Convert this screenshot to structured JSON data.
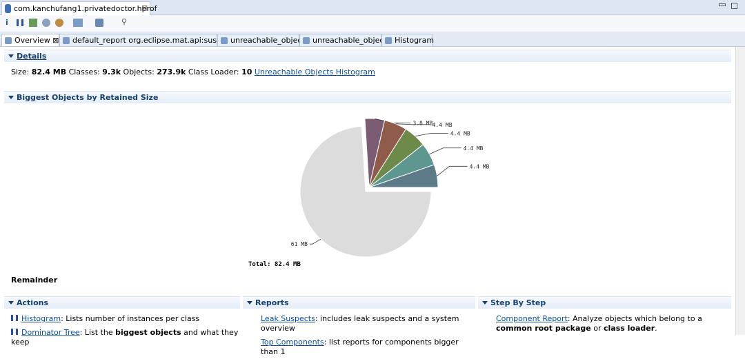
{
  "editor_tab": "com.kanchufang1.privatedoctor.hprof",
  "tabs": [
    "Overview",
    "default_report  org.eclipse.mat.api:suspects",
    "unreachable_objects",
    "unreachable_objects",
    "Histogram"
  ],
  "details": {
    "heading": "Details",
    "parts": [
      {
        "text": "Size: "
      },
      {
        "bold": "82.4 MB"
      },
      {
        "text": " Classes: "
      },
      {
        "bold": "9.3k"
      },
      {
        "text": " Objects: "
      },
      {
        "bold": "273.9k"
      },
      {
        "text": " Class Loader: "
      },
      {
        "bold": "10"
      },
      {
        "text": " "
      },
      {
        "link": "Unreachable Objects Histogram"
      }
    ]
  },
  "biggest": {
    "heading": "Biggest Objects by Retained Size",
    "chart_data": {
      "type": "pie",
      "values": [
        3.8,
        4.4,
        4.4,
        4.4,
        4.4,
        61
      ],
      "value_labels": [
        "3.8 MB",
        "4.4 MB",
        "4.4 MB",
        "4.4 MB",
        "4.4 MB",
        "61 MB"
      ],
      "colors": [
        "#7a5c73",
        "#8f5b4b",
        "#6e8a4a",
        "#5e9690",
        "#5c7a88",
        "#dcdcdc"
      ],
      "total_label": "Total: 82.4 MB"
    },
    "selection": "Remainder"
  },
  "panels": [
    {
      "heading": "Actions",
      "items": [
        [
          {
            "link": "Histogram"
          },
          {
            "text": ": Lists number of instances per class"
          }
        ],
        [
          {
            "link": "Dominator Tree"
          },
          {
            "text": ": List the "
          },
          {
            "bold": "biggest objects"
          },
          {
            "text": " and what they keep"
          }
        ]
      ]
    },
    {
      "heading": "Reports",
      "items": [
        [
          {
            "link": "Leak Suspects"
          },
          {
            "text": ": includes leak suspects and a system overview"
          }
        ],
        [
          {
            "link": "Top Components"
          },
          {
            "text": ": list reports for components bigger than 1"
          }
        ]
      ]
    },
    {
      "heading": "Step By Step",
      "items": [
        [
          {
            "link": "Component Report"
          },
          {
            "text": ": Analyze objects which belong to a "
          },
          {
            "bold": "common root package"
          },
          {
            "text": " or "
          },
          {
            "bold": "class loader"
          },
          {
            "text": "."
          }
        ]
      ]
    }
  ]
}
